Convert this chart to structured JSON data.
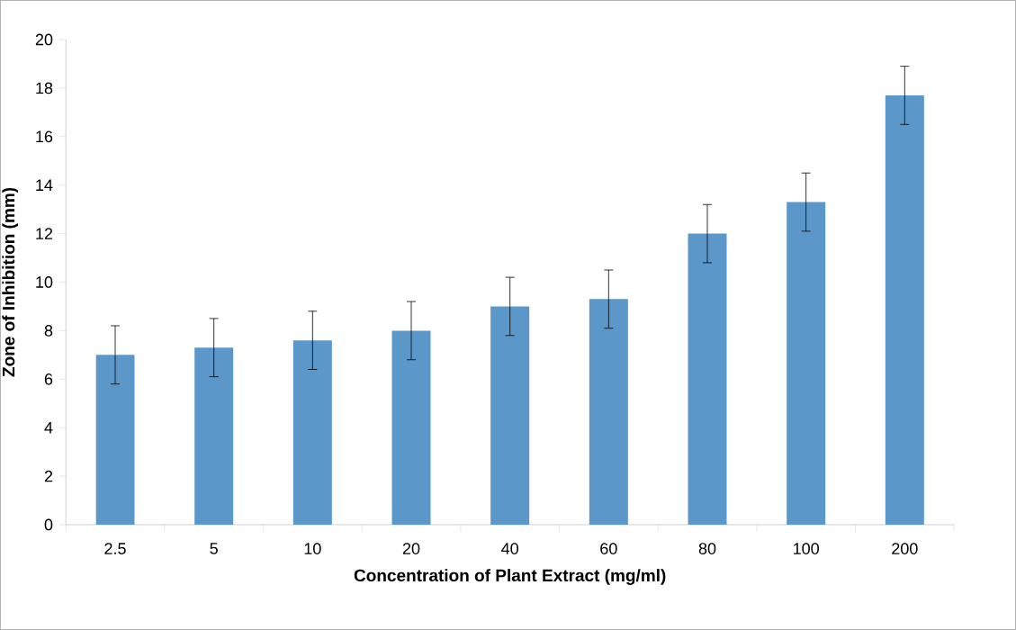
{
  "chart_data": {
    "type": "bar",
    "xlabel": "Concentration of Plant Extract (mg/ml)",
    "ylabel": "Zone of Inhibition (mm)",
    "categories": [
      "2.5",
      "5",
      "10",
      "20",
      "40",
      "60",
      "80",
      "100",
      "200"
    ],
    "values": [
      7.0,
      7.3,
      7.6,
      8.0,
      9.0,
      9.3,
      12.0,
      13.3,
      17.7
    ],
    "errors": [
      1.2,
      1.2,
      1.2,
      1.2,
      1.2,
      1.2,
      1.2,
      1.2,
      1.2
    ],
    "color": "#5b97c9",
    "ylim": [
      0,
      20
    ],
    "yticks": [
      0,
      2,
      4,
      6,
      8,
      10,
      12,
      14,
      16,
      18,
      20
    ],
    "grid": false
  }
}
